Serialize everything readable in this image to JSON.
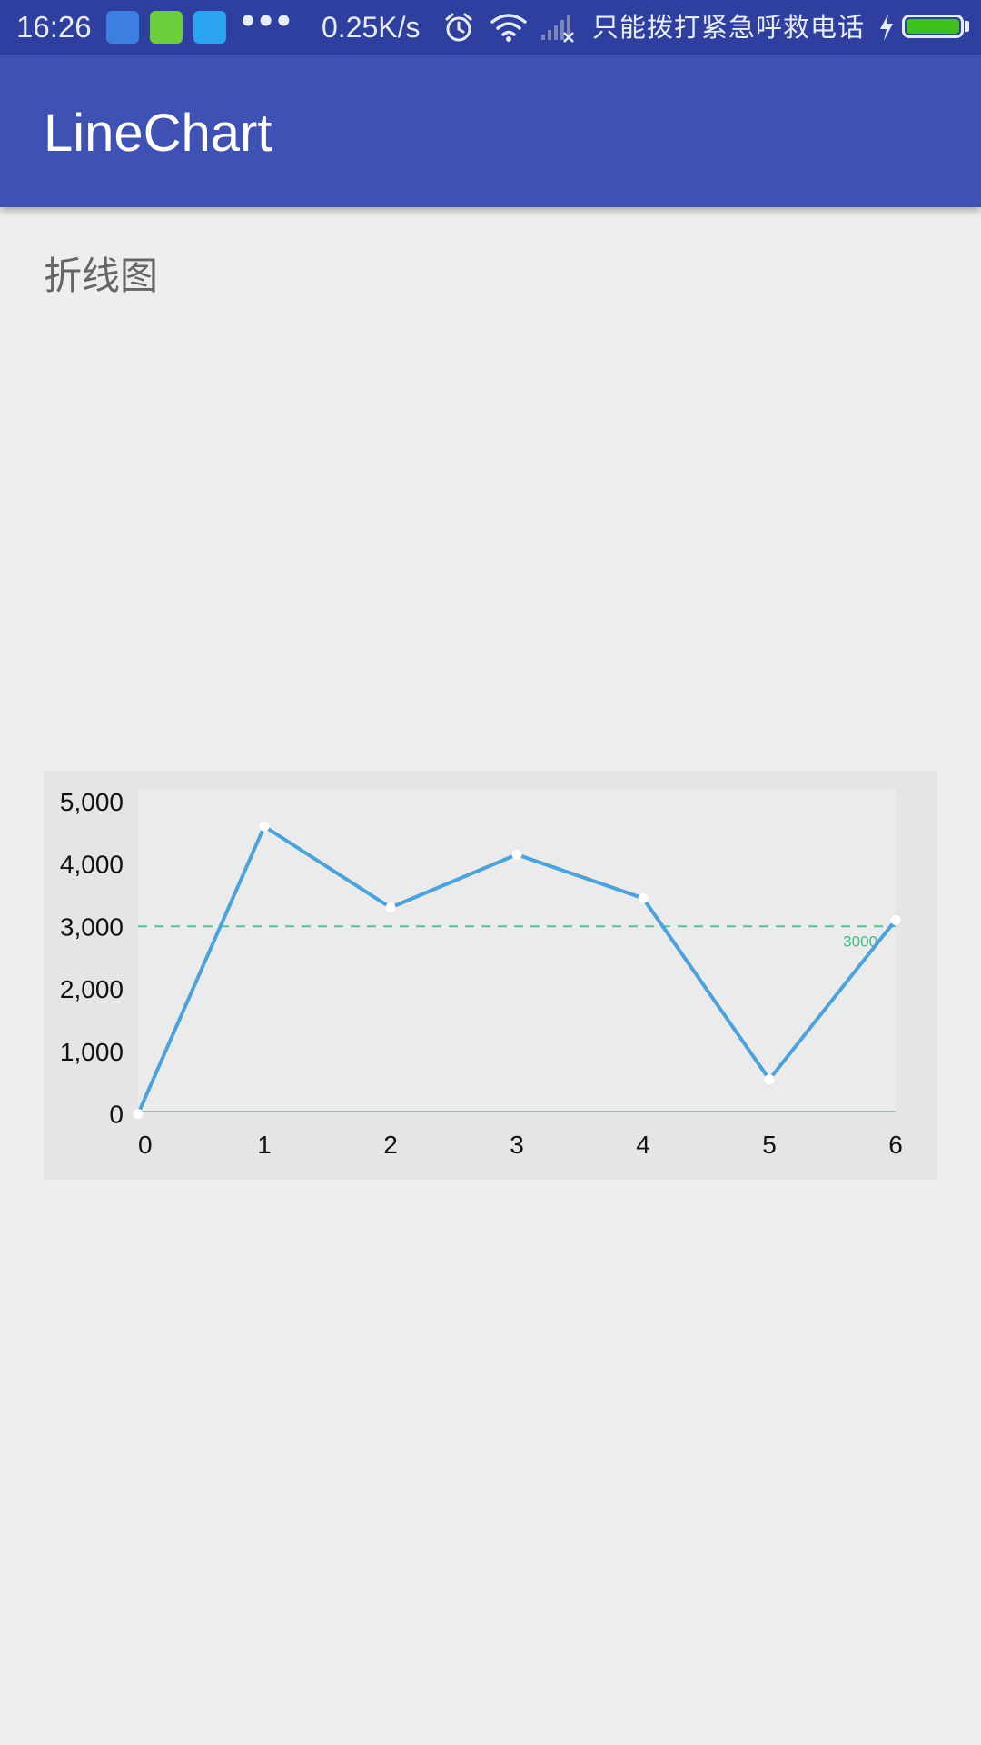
{
  "status_bar": {
    "time": "16:26",
    "app_icons": [
      "app-icon",
      "battery-app-icon",
      "browser-app-icon"
    ],
    "more": "•••",
    "net_speed": "0.25K/s",
    "carrier": "只能拨打紧急呼救电话",
    "battery_level": 1.0,
    "colors": {
      "background": "#2f3f9f",
      "battery": "#3cc21a"
    }
  },
  "app_bar": {
    "title": "LineChart",
    "color": "#3f51b5"
  },
  "section": {
    "label": "折线图"
  },
  "chart_data": {
    "type": "line",
    "x": [
      0,
      1,
      2,
      3,
      4,
      5,
      6
    ],
    "series": [
      {
        "values": [
          0,
          4600,
          3300,
          4150,
          3450,
          550,
          3100
        ],
        "color": "#4aa3df"
      }
    ],
    "x_tick_labels": [
      "0",
      "1",
      "2",
      "3",
      "4",
      "5",
      "6"
    ],
    "y_ticks": [
      0,
      1000,
      2000,
      3000,
      4000,
      5000
    ],
    "y_tick_labels": [
      "0",
      "1,000",
      "2,000",
      "3,000",
      "4,000",
      "5,000"
    ],
    "ylim": [
      -400,
      5200
    ],
    "limit_line": {
      "value": 3000,
      "label": "3000",
      "color": "#3fbf82",
      "dashed": true
    },
    "grid": false,
    "legend": "none",
    "background": "#e5e5e5"
  }
}
